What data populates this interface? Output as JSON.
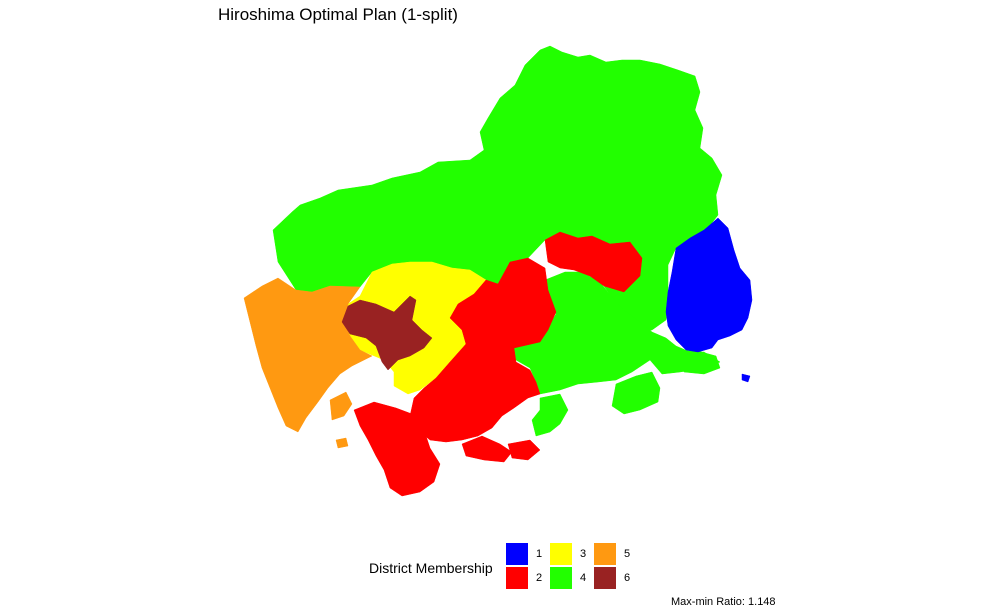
{
  "title": "Hiroshima Optimal Plan (1-split)",
  "legend": {
    "title": "District Membership",
    "items": [
      {
        "id": "1",
        "label": "1",
        "color": "#0000ff"
      },
      {
        "id": "2",
        "label": "2",
        "color": "#ff0000"
      },
      {
        "id": "3",
        "label": "3",
        "color": "#ffff00"
      },
      {
        "id": "4",
        "label": "4",
        "color": "#22ff00"
      },
      {
        "id": "5",
        "label": "5",
        "color": "#ff9911"
      },
      {
        "id": "6",
        "label": "6",
        "color": "#992222"
      }
    ]
  },
  "caption": "Max-min Ratio: 1.148",
  "districts": [
    {
      "name": "district-4",
      "color": "#22ff00"
    },
    {
      "name": "district-1",
      "color": "#0000ff"
    },
    {
      "name": "district-2",
      "color": "#ff0000"
    },
    {
      "name": "district-3",
      "color": "#ffff00"
    },
    {
      "name": "district-5",
      "color": "#ff9911"
    },
    {
      "name": "district-6",
      "color": "#992222"
    }
  ]
}
